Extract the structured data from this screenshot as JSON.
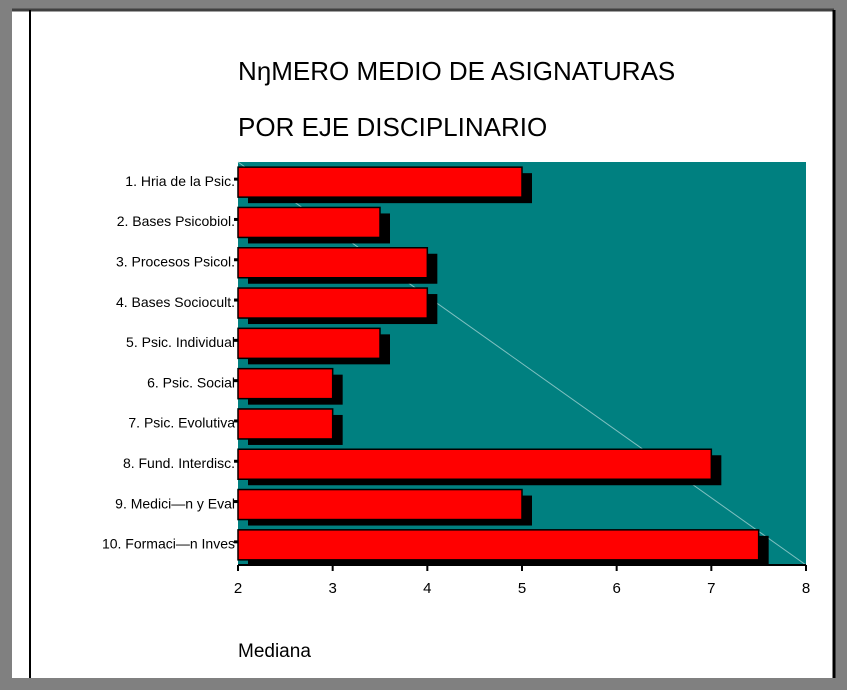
{
  "chart_data": {
    "type": "bar",
    "orientation": "horizontal",
    "title": [
      "NŋMERO MEDIO DE ASIGNATURAS",
      "POR EJE DISCIPLINARIO"
    ],
    "x_label": "Mediana",
    "categories": [
      "1. Hria de la Psic.",
      "2. Bases Psicobiol.",
      "3. Procesos Psicol.",
      "4. Bases Sociocult.",
      "5. Psic. Individual",
      "6. Psic. Social",
      "7. Psic. Evolutiva",
      "8. Fund. Interdisc.",
      "9. Medici—n y Eval",
      "10. Formaci—n Inves"
    ],
    "values": [
      5,
      3.5,
      4,
      4,
      3.5,
      3,
      3,
      7,
      5,
      7.5
    ],
    "color": "#ff0000",
    "background": "#008080",
    "xlim": [
      2,
      8
    ],
    "xticks": [
      2,
      3,
      4,
      5,
      6,
      7,
      8
    ]
  }
}
